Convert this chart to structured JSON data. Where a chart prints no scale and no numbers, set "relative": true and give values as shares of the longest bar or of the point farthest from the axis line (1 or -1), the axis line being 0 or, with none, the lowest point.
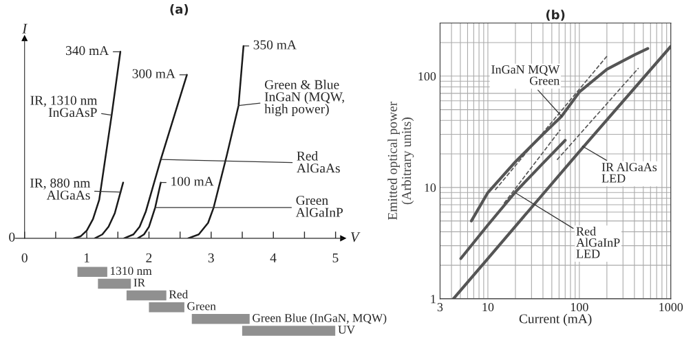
{
  "chart_data": [
    {
      "type": "line",
      "title": "(a)",
      "xlabel": "V",
      "ylabel": "I",
      "relative": true,
      "tick_labels": false,
      "xlim": [
        -0.15,
        5.12
      ],
      "xticks": [
        0,
        {
          "value": 0.5,
          "label": null
        },
        1,
        {
          "value": 1.5,
          "label": null
        },
        2,
        {
          "value": 2.5,
          "label": null
        },
        3,
        {
          "value": 3.5,
          "label": null
        },
        4,
        {
          "value": 4.5,
          "label": null
        },
        5
      ],
      "series": [
        {
          "color": "#1a1a1a",
          "x": [
            0.79,
            0.9,
            1.0,
            1.1,
            1.2,
            1.4,
            1.54
          ],
          "values": [
            0,
            0.01,
            0.04,
            0.1,
            0.2,
            0.64,
            0.97
          ]
        },
        {
          "color": "#1a1a1a",
          "x": [
            1.13,
            1.25,
            1.35,
            1.45,
            1.585
          ],
          "values": [
            0,
            0.02,
            0.06,
            0.13,
            0.29
          ]
        },
        {
          "color": "#1a1a1a",
          "x": [
            1.6,
            1.75,
            1.85,
            1.95,
            2.19,
            2.61
          ],
          "values": [
            0,
            0.02,
            0.06,
            0.14,
            0.41,
            0.85
          ]
        },
        {
          "color": "#1a1a1a",
          "x": [
            1.82,
            1.92,
            2.0,
            2.1,
            2.19
          ],
          "values": [
            0,
            0.02,
            0.06,
            0.16,
            0.29
          ]
        },
        {
          "color": "#1a1a1a",
          "x": [
            2.63,
            2.8,
            2.95,
            3.04,
            3.25,
            3.44,
            3.52
          ],
          "values": [
            0,
            0.02,
            0.08,
            0.16,
            0.43,
            0.69,
            1.0
          ]
        }
      ],
      "annotations": [
        {
          "text": "340 mA",
          "x": 1.54,
          "y": 0.97
        },
        {
          "text": "300 mA",
          "x": 2.61,
          "y": 0.85
        },
        {
          "text": "100 mA",
          "x": 2.19,
          "y": 0.29
        },
        {
          "text": "350 mA",
          "x": 3.52,
          "y": 1.0
        },
        {
          "text": "IR, 1310 nm\nInGaAsP",
          "x": 1.4,
          "y": 0.64
        },
        {
          "text": "IR, 880 nm\nAlGaAs",
          "x": 1.55,
          "y": 0.24
        },
        {
          "text": "Red\nAlGaAs",
          "x": 2.19,
          "y": 0.41
        },
        {
          "text": "Green\nAlGaInP",
          "x": 2.1,
          "y": 0.16
        },
        {
          "text": "Green & Blue\nInGaN (MQW,\nhigh power)",
          "x": 3.44,
          "y": 0.69
        },
        "0"
      ]
    },
    {
      "type": "bar",
      "orientation": "horizontal",
      "xlim": [
        0,
        5
      ],
      "xticks": [
        0,
        1,
        2,
        3,
        4,
        5
      ],
      "color": "#909090",
      "categories": [
        "1310 nm",
        "IR",
        "Red",
        "Green",
        "Green\nBlue\n(InGaN, MQW)",
        "UV"
      ],
      "base": [
        0.85,
        1.18,
        1.64,
        2.0,
        2.69,
        3.5
      ],
      "values": [
        0.48,
        0.53,
        0.64,
        0.57,
        0.93,
        1.5
      ]
    },
    {
      "type": "line",
      "title": "(b)",
      "xlabel": "Current (mA)",
      "ylabel": "Emitted optical power\n(Arbitrary units)",
      "log": "xy",
      "grid": true,
      "xlim": [
        3,
        1000
      ],
      "xticks": [
        3,
        10,
        100,
        1000
      ],
      "ylim": [
        1,
        300
      ],
      "yticks": [
        1,
        10,
        100
      ],
      "series": [
        {
          "color": "#555555",
          "x": [
            6.6,
            10,
            20,
            40,
            64,
            100,
            200,
            400,
            560
          ],
          "values": [
            5,
            9,
            17,
            30,
            43.6,
            72,
            115,
            155,
            177
          ]
        },
        {
          "color": "#555555",
          "x": [
            5.06,
            10,
            20,
            40,
            70
          ],
          "values": [
            2.3,
            4.6,
            9.1,
            16.5,
            26.5
          ]
        },
        {
          "color": "#555555",
          "x": [
            4.2,
            10,
            100,
            1000
          ],
          "values": [
            1,
            2.3,
            21,
            185
          ]
        },
        {
          "color": "#555555",
          "line_style": "dashed",
          "x": [
            12,
            203
          ],
          "values": [
            9.5,
            153
          ]
        },
        {
          "color": "#555555",
          "line_style": "dashed",
          "x": [
            15,
            62
          ],
          "values": [
            7.2,
            33
          ]
        },
        {
          "color": "#555555",
          "line_style": "dashed",
          "x": [
            57,
            443
          ],
          "values": [
            17.7,
            118
          ]
        }
      ],
      "annotations": [
        {
          "text": "InGaN MQW\nGreen",
          "x": 64,
          "y": 43.6
        },
        {
          "text": "IR AlGaAs\nLED",
          "x": 108,
          "y": 23.5
        },
        {
          "text": "Red\nAlGaInP\nLED",
          "x": 20.2,
          "y": 8.9
        }
      ]
    }
  ]
}
